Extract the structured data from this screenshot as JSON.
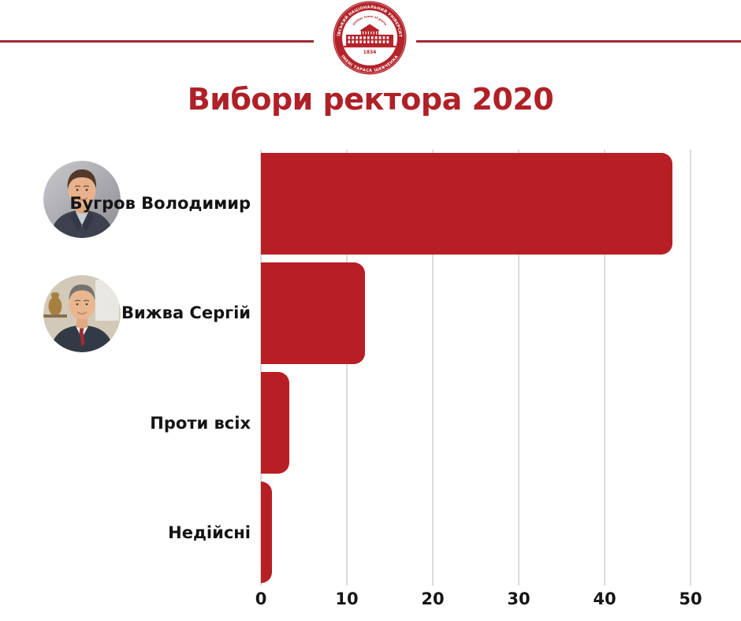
{
  "title": "Вибори ректора 2020",
  "header": {
    "seal": {
      "top_text": "КИЇВСЬКИЙ НАЦІОНАЛЬНИЙ УНІВЕРСИТЕТ",
      "bottom_text": "ІМЕНІ ТАРАСА ШЕВЧЕНКА",
      "motto": "Utilitas honor et gloria",
      "year": "1834"
    }
  },
  "chart_data": {
    "type": "bar",
    "orientation": "horizontal",
    "title": "Вибори ректора 2020",
    "categories": [
      "Бугров Володимир",
      "Вижва Сергій",
      "Проти всіх",
      "Недійсні"
    ],
    "values": [
      47.9,
      12.1,
      3.3,
      1.3
    ],
    "x_ticks": [
      0,
      10,
      20,
      30,
      40,
      50
    ],
    "xlim": [
      0,
      50
    ],
    "xlabel": "",
    "ylabel": "",
    "grid": true,
    "legend": "none",
    "bar_color": "#b71f25"
  },
  "colors": {
    "bar": "#b71f25",
    "title": "#af2127",
    "header_rule": "#a02b33",
    "grid": "#dadada",
    "tick_text": "#161616",
    "seal_red": "#b4232a"
  }
}
